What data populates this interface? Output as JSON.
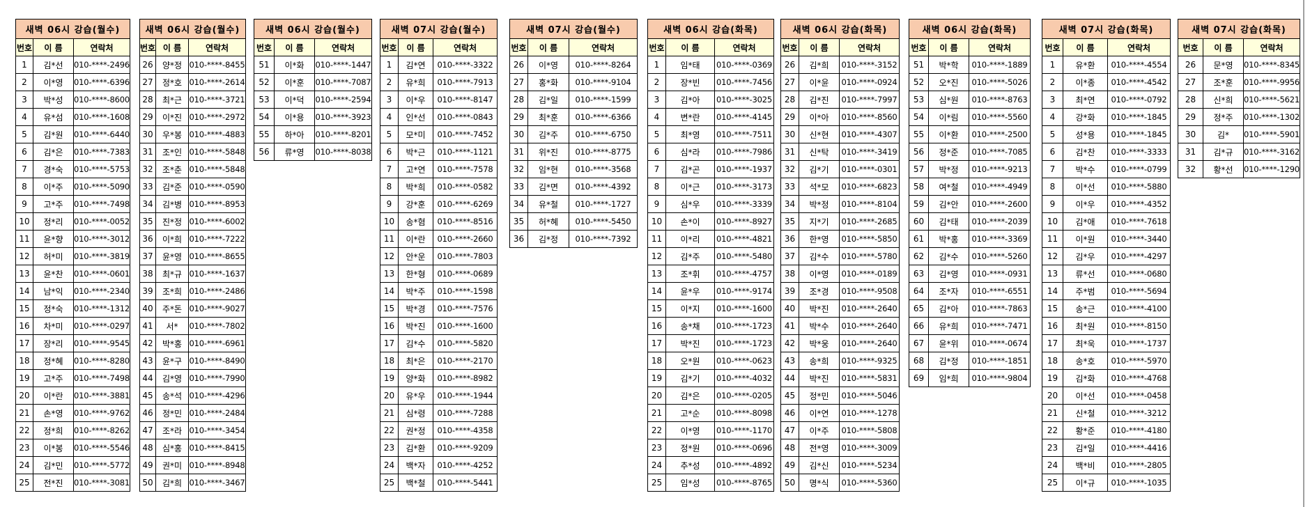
{
  "columns": {
    "number": "번호",
    "name": "이 름",
    "phone": "연락처"
  },
  "tables": [
    {
      "title": "새벽 06시 강습(월수)",
      "rows": [
        [
          "1",
          "김*선",
          "010-****-2496"
        ],
        [
          "2",
          "이*영",
          "010-****-6396"
        ],
        [
          "3",
          "박*성",
          "010-****-8600"
        ],
        [
          "4",
          "유*섬",
          "010-****-1608"
        ],
        [
          "5",
          "김*원",
          "010-****-6440"
        ],
        [
          "6",
          "김*은",
          "010-****-7383"
        ],
        [
          "7",
          "경*숙",
          "010-****-5753"
        ],
        [
          "8",
          "이*주",
          "010-****-5090"
        ],
        [
          "9",
          "고*주",
          "010-****-7498"
        ],
        [
          "10",
          "정*리",
          "010-****-0052"
        ],
        [
          "11",
          "윤*향",
          "010-****-3012"
        ],
        [
          "12",
          "허*미",
          "010-****-3819"
        ],
        [
          "13",
          "윤*찬",
          "010-****-0601"
        ],
        [
          "14",
          "남*익",
          "010-****-2340"
        ],
        [
          "15",
          "정*숙",
          "010-****-1312"
        ],
        [
          "16",
          "차*미",
          "010-****-0297"
        ],
        [
          "17",
          "장*리",
          "010-****-9545"
        ],
        [
          "18",
          "정*혜",
          "010-****-8280"
        ],
        [
          "19",
          "고*주",
          "010-****-7498"
        ],
        [
          "20",
          "이*란",
          "010-****-3881"
        ],
        [
          "21",
          "손*영",
          "010-****-9762"
        ],
        [
          "22",
          "정*희",
          "010-****-8262"
        ],
        [
          "23",
          "이*봉",
          "010-****-5546"
        ],
        [
          "24",
          "김*민",
          "010-****-5772"
        ],
        [
          "25",
          "전*진",
          "010-****-3081"
        ]
      ]
    },
    {
      "title": "새벽 06시 강습(월수)",
      "rows": [
        [
          "26",
          "양*정",
          "010-****-8455"
        ],
        [
          "27",
          "정*호",
          "010-****-2614"
        ],
        [
          "28",
          "최*근",
          "010-****-3721"
        ],
        [
          "29",
          "이*진",
          "010-****-2972"
        ],
        [
          "30",
          "우*봉",
          "010-****-4883"
        ],
        [
          "31",
          "조*인",
          "010-****-5848"
        ],
        [
          "32",
          "조*춘",
          "010-****-5848"
        ],
        [
          "33",
          "김*준",
          "010-****-0590"
        ],
        [
          "34",
          "김*병",
          "010-****-8953"
        ],
        [
          "35",
          "진*정",
          "010-****-6002"
        ],
        [
          "36",
          "이*희",
          "010-****-7222"
        ],
        [
          "37",
          "윤*영",
          "010-****-8655"
        ],
        [
          "38",
          "최*규",
          "010-****-1637"
        ],
        [
          "39",
          "조*희",
          "010-****-2486"
        ],
        [
          "40",
          "주*돈",
          "010-****-9027"
        ],
        [
          "41",
          "서*",
          "010-****-7802"
        ],
        [
          "42",
          "박*홍",
          "010-****-6961"
        ],
        [
          "43",
          "윤*구",
          "010-****-8490"
        ],
        [
          "44",
          "김*영",
          "010-****-7990"
        ],
        [
          "45",
          "송*석",
          "010-****-4296"
        ],
        [
          "46",
          "정*민",
          "010-****-2484"
        ],
        [
          "47",
          "조*라",
          "010-****-3454"
        ],
        [
          "48",
          "심*홍",
          "010-****-8415"
        ],
        [
          "49",
          "권*미",
          "010-****-8948"
        ],
        [
          "50",
          "김*희",
          "010-****-3467"
        ]
      ]
    },
    {
      "title": "새벽 06시 강습(월수)",
      "rows": [
        [
          "51",
          "이*화",
          "010-****-1447"
        ],
        [
          "52",
          "이*훈",
          "010-****-7087"
        ],
        [
          "53",
          "이*덕",
          "010-****-2594"
        ],
        [
          "54",
          "이*용",
          "010-****-3923"
        ],
        [
          "55",
          "하*아",
          "010-****-8201"
        ],
        [
          "56",
          "류*영",
          "010-****-8038"
        ]
      ]
    },
    {
      "title": "새벽 07시 강습(월수)",
      "rows": [
        [
          "1",
          "김*연",
          "010-****-3322"
        ],
        [
          "2",
          "유*희",
          "010-****-7913"
        ],
        [
          "3",
          "이*우",
          "010-****-8147"
        ],
        [
          "4",
          "인*선",
          "010-****-0843"
        ],
        [
          "5",
          "모*미",
          "010-****-7452"
        ],
        [
          "6",
          "박*근",
          "010-****-1121"
        ],
        [
          "7",
          "고*연",
          "010-****-7578"
        ],
        [
          "8",
          "박*희",
          "010-****-0582"
        ],
        [
          "9",
          "강*훈",
          "010-****-6269"
        ],
        [
          "10",
          "송*혐",
          "010-****-8516"
        ],
        [
          "11",
          "이*란",
          "010-****-2660"
        ],
        [
          "12",
          "안*운",
          "010-****-7803"
        ],
        [
          "13",
          "한*형",
          "010-****-0689"
        ],
        [
          "14",
          "박*주",
          "010-****-1598"
        ],
        [
          "15",
          "박*경",
          "010-****-7576"
        ],
        [
          "16",
          "박*진",
          "010-****-1600"
        ],
        [
          "17",
          "김*수",
          "010-****-5820"
        ],
        [
          "18",
          "최*은",
          "010-****-2170"
        ],
        [
          "19",
          "양*화",
          "010-****-8982"
        ],
        [
          "20",
          "유*우",
          "010-****-1944"
        ],
        [
          "21",
          "심*령",
          "010-****-7288"
        ],
        [
          "22",
          "권*정",
          "010-****-4358"
        ],
        [
          "23",
          "김*환",
          "010-****-9209"
        ],
        [
          "24",
          "백*자",
          "010-****-4252"
        ],
        [
          "25",
          "백*철",
          "010-****-5441"
        ]
      ]
    },
    {
      "title": "새벽 07시 강습(월수)",
      "rows": [
        [
          "26",
          "이*영",
          "010-****-8264"
        ],
        [
          "27",
          "홍*화",
          "010-****-9104"
        ],
        [
          "28",
          "김*일",
          "010-****-1599"
        ],
        [
          "29",
          "최*훈",
          "010-****-6366"
        ],
        [
          "30",
          "김*주",
          "010-****-6750"
        ],
        [
          "31",
          "위*진",
          "010-****-8775"
        ],
        [
          "32",
          "임*현",
          "010-****-3568"
        ],
        [
          "33",
          "김*면",
          "010-****-4392"
        ],
        [
          "34",
          "유*철",
          "010-****-1727"
        ],
        [
          "35",
          "허*혜",
          "010-****-5450"
        ],
        [
          "36",
          "김*정",
          "010-****-7392"
        ]
      ]
    },
    {
      "title": "새벽 06시 강습(화목)",
      "rows": [
        [
          "1",
          "임*태",
          "010-****-0369"
        ],
        [
          "2",
          "장*빈",
          "010-****-7456"
        ],
        [
          "3",
          "김*아",
          "010-****-3025"
        ],
        [
          "4",
          "변*란",
          "010-****-4145"
        ],
        [
          "5",
          "최*영",
          "010-****-7511"
        ],
        [
          "6",
          "심*라",
          "010-****-7986"
        ],
        [
          "7",
          "김*곤",
          "010-****-1937"
        ],
        [
          "8",
          "이*근",
          "010-****-3173"
        ],
        [
          "9",
          "심*우",
          "010-****-3339"
        ],
        [
          "10",
          "손*이",
          "010-****-8927"
        ],
        [
          "11",
          "이*리",
          "010-****-4821"
        ],
        [
          "12",
          "김*주",
          "010-****-5480"
        ],
        [
          "13",
          "조*휘",
          "010-****-4757"
        ],
        [
          "14",
          "윤*우",
          "010-****-9174"
        ],
        [
          "15",
          "이*지",
          "010-****-1600"
        ],
        [
          "16",
          "송*채",
          "010-****-1723"
        ],
        [
          "17",
          "박*진",
          "010-****-1723"
        ],
        [
          "18",
          "오*원",
          "010-****-0623"
        ],
        [
          "19",
          "김*기",
          "010-****-4032"
        ],
        [
          "20",
          "김*은",
          "010-****-0205"
        ],
        [
          "21",
          "고*순",
          "010-****-8098"
        ],
        [
          "22",
          "이*영",
          "010-****-1170"
        ],
        [
          "23",
          "정*원",
          "010-****-0696"
        ],
        [
          "24",
          "추*성",
          "010-****-4892"
        ],
        [
          "25",
          "임*성",
          "010-****-8765"
        ]
      ]
    },
    {
      "title": "새벽 06시 강습(화목)",
      "rows": [
        [
          "26",
          "김*희",
          "010-****-3152"
        ],
        [
          "27",
          "이*윤",
          "010-****-0924"
        ],
        [
          "28",
          "김*진",
          "010-****-7997"
        ],
        [
          "29",
          "이*아",
          "010-****-8560"
        ],
        [
          "30",
          "신*현",
          "010-****-4307"
        ],
        [
          "31",
          "신*탁",
          "010-****-3419"
        ],
        [
          "32",
          "김*기",
          "010-****-0301"
        ],
        [
          "33",
          "석*모",
          "010-****-6823"
        ],
        [
          "34",
          "박*정",
          "010-****-8104"
        ],
        [
          "35",
          "지*기",
          "010-****-2685"
        ],
        [
          "36",
          "한*영",
          "010-****-5850"
        ],
        [
          "37",
          "김*수",
          "010-****-5780"
        ],
        [
          "38",
          "이*영",
          "010-****-0189"
        ],
        [
          "39",
          "조*경",
          "010-****-9508"
        ],
        [
          "40",
          "박*진",
          "010-****-2640"
        ],
        [
          "41",
          "박*수",
          "010-****-2640"
        ],
        [
          "42",
          "박*웅",
          "010-****-2640"
        ],
        [
          "43",
          "송*희",
          "010-****-9325"
        ],
        [
          "44",
          "박*진",
          "010-****-5831"
        ],
        [
          "45",
          "정*민",
          "010-****-5046"
        ],
        [
          "46",
          "이*연",
          "010-****-1278"
        ],
        [
          "47",
          "이*주",
          "010-****-5808"
        ],
        [
          "48",
          "전*영",
          "010-****-3009"
        ],
        [
          "49",
          "김*신",
          "010-****-5234"
        ],
        [
          "50",
          "명*식",
          "010-****-5360"
        ]
      ]
    },
    {
      "title": "새벽 06시 강습(화목)",
      "rows": [
        [
          "51",
          "박*학",
          "010-****-1889"
        ],
        [
          "52",
          "오*진",
          "010-****-5026"
        ],
        [
          "53",
          "심*원",
          "010-****-8763"
        ],
        [
          "54",
          "이*림",
          "010-****-5560"
        ],
        [
          "55",
          "이*환",
          "010-****-2500"
        ],
        [
          "56",
          "정*준",
          "010-****-7085"
        ],
        [
          "57",
          "박*정",
          "010-****-9213"
        ],
        [
          "58",
          "여*철",
          "010-****-4949"
        ],
        [
          "59",
          "김*안",
          "010-****-2600"
        ],
        [
          "60",
          "김*태",
          "010-****-2039"
        ],
        [
          "61",
          "박*홍",
          "010-****-3369"
        ],
        [
          "62",
          "김*수",
          "010-****-5260"
        ],
        [
          "63",
          "김*영",
          "010-****-0931"
        ],
        [
          "64",
          "조*자",
          "010-****-6551"
        ],
        [
          "65",
          "김*아",
          "010-****-7863"
        ],
        [
          "66",
          "유*희",
          "010-****-7471"
        ],
        [
          "67",
          "윤*위",
          "010-****-0674"
        ],
        [
          "68",
          "김*정",
          "010-****-1851"
        ],
        [
          "69",
          "임*희",
          "010-****-9804"
        ]
      ]
    },
    {
      "title": "새벽 07시 강습(화목)",
      "rows": [
        [
          "1",
          "유*환",
          "010-****-4554"
        ],
        [
          "2",
          "이*종",
          "010-****-4542"
        ],
        [
          "3",
          "최*연",
          "010-****-0792"
        ],
        [
          "4",
          "강*화",
          "010-****-1845"
        ],
        [
          "5",
          "성*용",
          "010-****-1845"
        ],
        [
          "6",
          "김*찬",
          "010-****-3333"
        ],
        [
          "7",
          "박*수",
          "010-****-0799"
        ],
        [
          "8",
          "이*선",
          "010-****-5880"
        ],
        [
          "9",
          "이*우",
          "010-****-4352"
        ],
        [
          "10",
          "김*애",
          "010-****-7618"
        ],
        [
          "11",
          "이*원",
          "010-****-3440"
        ],
        [
          "12",
          "김*우",
          "010-****-4297"
        ],
        [
          "13",
          "류*선",
          "010-****-0680"
        ],
        [
          "14",
          "주*범",
          "010-****-5694"
        ],
        [
          "15",
          "송*근",
          "010-****-4100"
        ],
        [
          "16",
          "최*원",
          "010-****-8150"
        ],
        [
          "17",
          "최*욱",
          "010-****-1737"
        ],
        [
          "18",
          "송*호",
          "010-****-5970"
        ],
        [
          "19",
          "김*화",
          "010-****-4768"
        ],
        [
          "20",
          "이*선",
          "010-****-0458"
        ],
        [
          "21",
          "신*철",
          "010-****-3212"
        ],
        [
          "22",
          "황*준",
          "010-****-4180"
        ],
        [
          "23",
          "김*일",
          "010-****-4416"
        ],
        [
          "24",
          "백*비",
          "010-****-2805"
        ],
        [
          "25",
          "이*규",
          "010-****-1035"
        ]
      ]
    },
    {
      "title": "새벽 07시 강습(화목)",
      "rows": [
        [
          "26",
          "문*영",
          "010-****-8345"
        ],
        [
          "27",
          "조*훈",
          "010-****-9956"
        ],
        [
          "28",
          "신*희",
          "010-****-5621"
        ],
        [
          "29",
          "정*주",
          "010-****-1302"
        ],
        [
          "30",
          "김*",
          "010-****-5901"
        ],
        [
          "31",
          "김*규",
          "010-****-3162"
        ],
        [
          "32",
          "황*선",
          "010-****-1290"
        ]
      ]
    }
  ]
}
